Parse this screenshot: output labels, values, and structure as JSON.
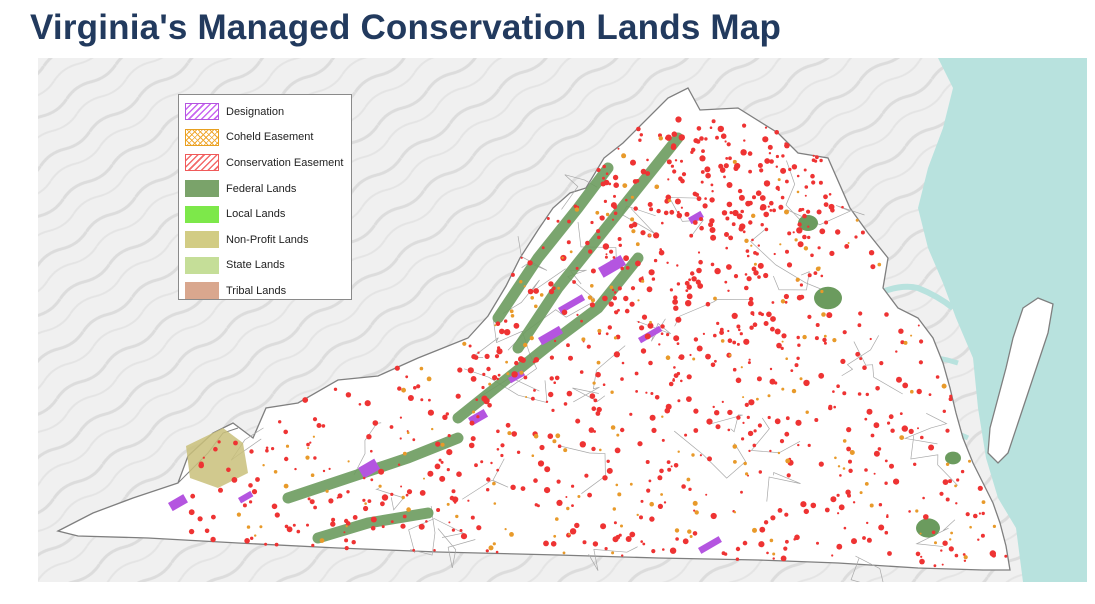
{
  "title": "Virginia's Managed Conservation Lands Map",
  "legend": {
    "items": [
      {
        "label": "Designation",
        "color": "#c866f0",
        "pattern": "hatch"
      },
      {
        "label": "Coheld Easement",
        "color": "#f0a830",
        "pattern": "crosshatch"
      },
      {
        "label": "Conservation Easement",
        "color": "#f36a6a",
        "pattern": "hatch"
      },
      {
        "label": "Federal Lands",
        "color": "#7aa36a",
        "pattern": "solid"
      },
      {
        "label": "Local Lands",
        "color": "#7de84a",
        "pattern": "solid"
      },
      {
        "label": "Non-Profit Lands",
        "color": "#d2cc84",
        "pattern": "solid"
      },
      {
        "label": "State Lands",
        "color": "#c5de98",
        "pattern": "solid"
      },
      {
        "label": "Tribal Lands",
        "color": "#d9a78e",
        "pattern": "solid"
      }
    ]
  },
  "map": {
    "base_color": "#f2f2f2",
    "water_color": "#b8e2de",
    "state_fill": "#ffffff",
    "boundary_color": "#8f8f8f",
    "easement_color": "#ee3333",
    "federal_color": "#6b9b5e",
    "designation_color": "#b455e0",
    "nonprofit_color": "#c9c07a",
    "coheld_color": "#e89a2a"
  }
}
